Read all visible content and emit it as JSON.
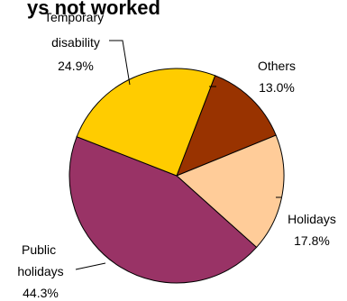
{
  "chart_data": {
    "type": "pie",
    "title": "ys not worked",
    "slices": [
      {
        "label": "Others",
        "value": 13.0,
        "value_label": "13.0%",
        "color": "#993300"
      },
      {
        "label": "Holidays",
        "value": 17.8,
        "value_label": "17.8%",
        "color": "#FFCC99"
      },
      {
        "label": "Public holidays",
        "value": 44.3,
        "value_label": "44.3%",
        "color": "#993366"
      },
      {
        "label": "Temporary disability",
        "value": 24.9,
        "value_label": "24.9%",
        "color": "#FFCC00"
      }
    ]
  }
}
